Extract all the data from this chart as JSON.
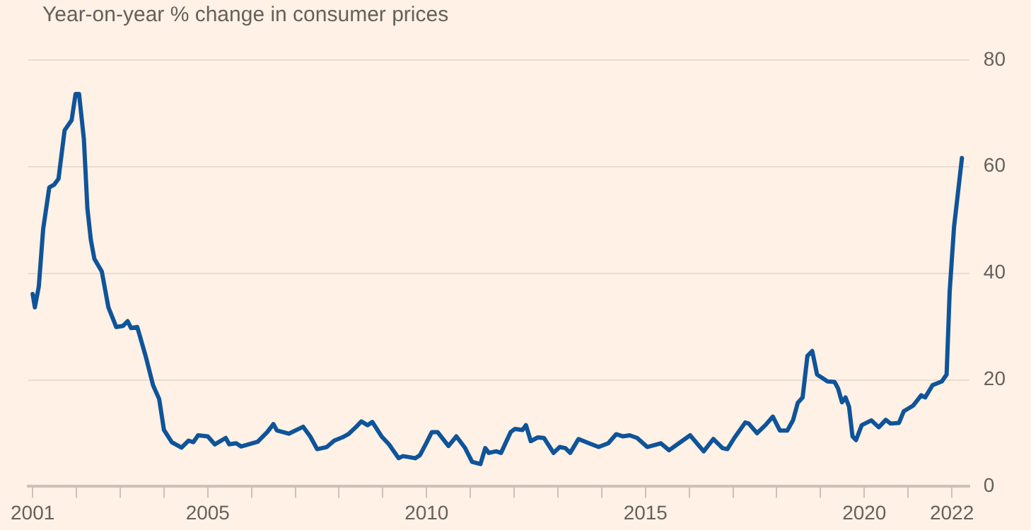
{
  "chart_data": {
    "type": "line",
    "subtitle": "Year-on-year % change in consumer prices",
    "x": [
      2001.0,
      2001.05,
      2001.14,
      2001.24,
      2001.38,
      2001.49,
      2001.59,
      2001.73,
      2001.89,
      2001.98,
      2002.06,
      2002.17,
      2002.25,
      2002.33,
      2002.41,
      2002.58,
      2002.73,
      2002.91,
      2003.06,
      2003.17,
      2003.25,
      2003.39,
      2003.58,
      2003.75,
      2003.89,
      2004.0,
      2004.18,
      2004.4,
      2004.56,
      2004.67,
      2004.78,
      2005.0,
      2005.16,
      2005.41,
      2005.49,
      2005.65,
      2005.76,
      2006.14,
      2006.36,
      2006.5,
      2006.58,
      2006.85,
      2007.18,
      2007.34,
      2007.5,
      2007.72,
      2007.89,
      2008.1,
      2008.21,
      2008.38,
      2008.51,
      2008.65,
      2008.76,
      2008.97,
      2009.14,
      2009.36,
      2009.46,
      2009.74,
      2009.85,
      2009.99,
      2010.12,
      2010.25,
      2010.5,
      2010.68,
      2010.88,
      2011.04,
      2011.23,
      2011.34,
      2011.42,
      2011.59,
      2011.7,
      2011.92,
      2012.02,
      2012.19,
      2012.27,
      2012.38,
      2012.54,
      2012.68,
      2012.9,
      2013.04,
      2013.17,
      2013.28,
      2013.47,
      2013.71,
      2013.93,
      2014.15,
      2014.33,
      2014.48,
      2014.64,
      2014.81,
      2015.04,
      2015.35,
      2015.54,
      2015.78,
      2016.02,
      2016.33,
      2016.55,
      2016.76,
      2016.87,
      2017.03,
      2017.28,
      2017.36,
      2017.55,
      2017.74,
      2017.91,
      2018.07,
      2018.24,
      2018.37,
      2018.48,
      2018.59,
      2018.7,
      2018.81,
      2018.92,
      2019.05,
      2019.16,
      2019.32,
      2019.4,
      2019.49,
      2019.57,
      2019.65,
      2019.73,
      2019.81,
      2019.94,
      2020.16,
      2020.33,
      2020.49,
      2020.6,
      2020.79,
      2020.9,
      2021.12,
      2021.3,
      2021.39,
      2021.56,
      2021.77,
      2021.88,
      2021.95,
      2022.05,
      2022.23
    ],
    "series": [
      {
        "color": "#0f5499",
        "values": [
          36.1,
          33.6,
          37.5,
          48.3,
          56.1,
          56.6,
          57.7,
          66.8,
          68.7,
          73.6,
          73.6,
          65.2,
          52.2,
          46.2,
          42.7,
          40.3,
          33.6,
          29.9,
          30.1,
          31.0,
          29.7,
          29.9,
          24.5,
          19.0,
          16.4,
          10.6,
          8.3,
          7.3,
          8.6,
          8.3,
          9.6,
          9.4,
          7.9,
          9.1,
          7.9,
          8.1,
          7.5,
          8.4,
          10.2,
          11.7,
          10.5,
          9.9,
          11.2,
          9.4,
          7.0,
          7.4,
          8.6,
          9.3,
          9.8,
          11.1,
          12.2,
          11.5,
          12.1,
          9.4,
          7.9,
          5.3,
          5.7,
          5.3,
          5.9,
          8.1,
          10.2,
          10.2,
          7.6,
          9.4,
          7.2,
          4.6,
          4.2,
          7.2,
          6.3,
          6.6,
          6.3,
          10.2,
          10.8,
          10.6,
          11.5,
          8.5,
          9.2,
          9.1,
          6.3,
          7.4,
          7.2,
          6.3,
          8.9,
          8.1,
          7.4,
          8.1,
          9.8,
          9.4,
          9.6,
          9.1,
          7.4,
          8.1,
          6.8,
          8.2,
          9.6,
          6.6,
          8.9,
          7.2,
          7.0,
          9.1,
          12.0,
          11.8,
          10.0,
          11.5,
          13.1,
          10.5,
          10.5,
          12.4,
          15.7,
          16.7,
          24.5,
          25.4,
          21.0,
          20.3,
          19.7,
          19.6,
          18.4,
          15.8,
          16.7,
          15.0,
          9.4,
          8.7,
          11.5,
          12.4,
          11.1,
          12.5,
          11.8,
          11.9,
          14.1,
          15.2,
          17.1,
          16.7,
          19.0,
          19.7,
          21.0,
          36.6,
          48.7,
          61.6
        ]
      }
    ],
    "xlim": [
      2000.9,
      2022.4
    ],
    "xticks": [
      2001,
      {
        "value": 2002,
        "label": null
      },
      {
        "value": 2003,
        "label": null
      },
      {
        "value": 2004,
        "label": null
      },
      2005,
      {
        "value": 2006,
        "label": null
      },
      {
        "value": 2007,
        "label": null
      },
      {
        "value": 2008,
        "label": null
      },
      {
        "value": 2009,
        "label": null
      },
      2010,
      {
        "value": 2011,
        "label": null
      },
      {
        "value": 2012,
        "label": null
      },
      {
        "value": 2013,
        "label": null
      },
      {
        "value": 2014,
        "label": null
      },
      2015,
      {
        "value": 2016,
        "label": null
      },
      {
        "value": 2017,
        "label": null
      },
      {
        "value": 2018,
        "label": null
      },
      {
        "value": 2019,
        "label": null
      },
      2020,
      {
        "value": 2021,
        "label": null
      },
      2022
    ],
    "ylim": [
      0,
      80
    ],
    "yticks": [
      0,
      20,
      40,
      60,
      80
    ],
    "grid": "y",
    "legend": false,
    "line_style": "solid",
    "marker": "none"
  }
}
